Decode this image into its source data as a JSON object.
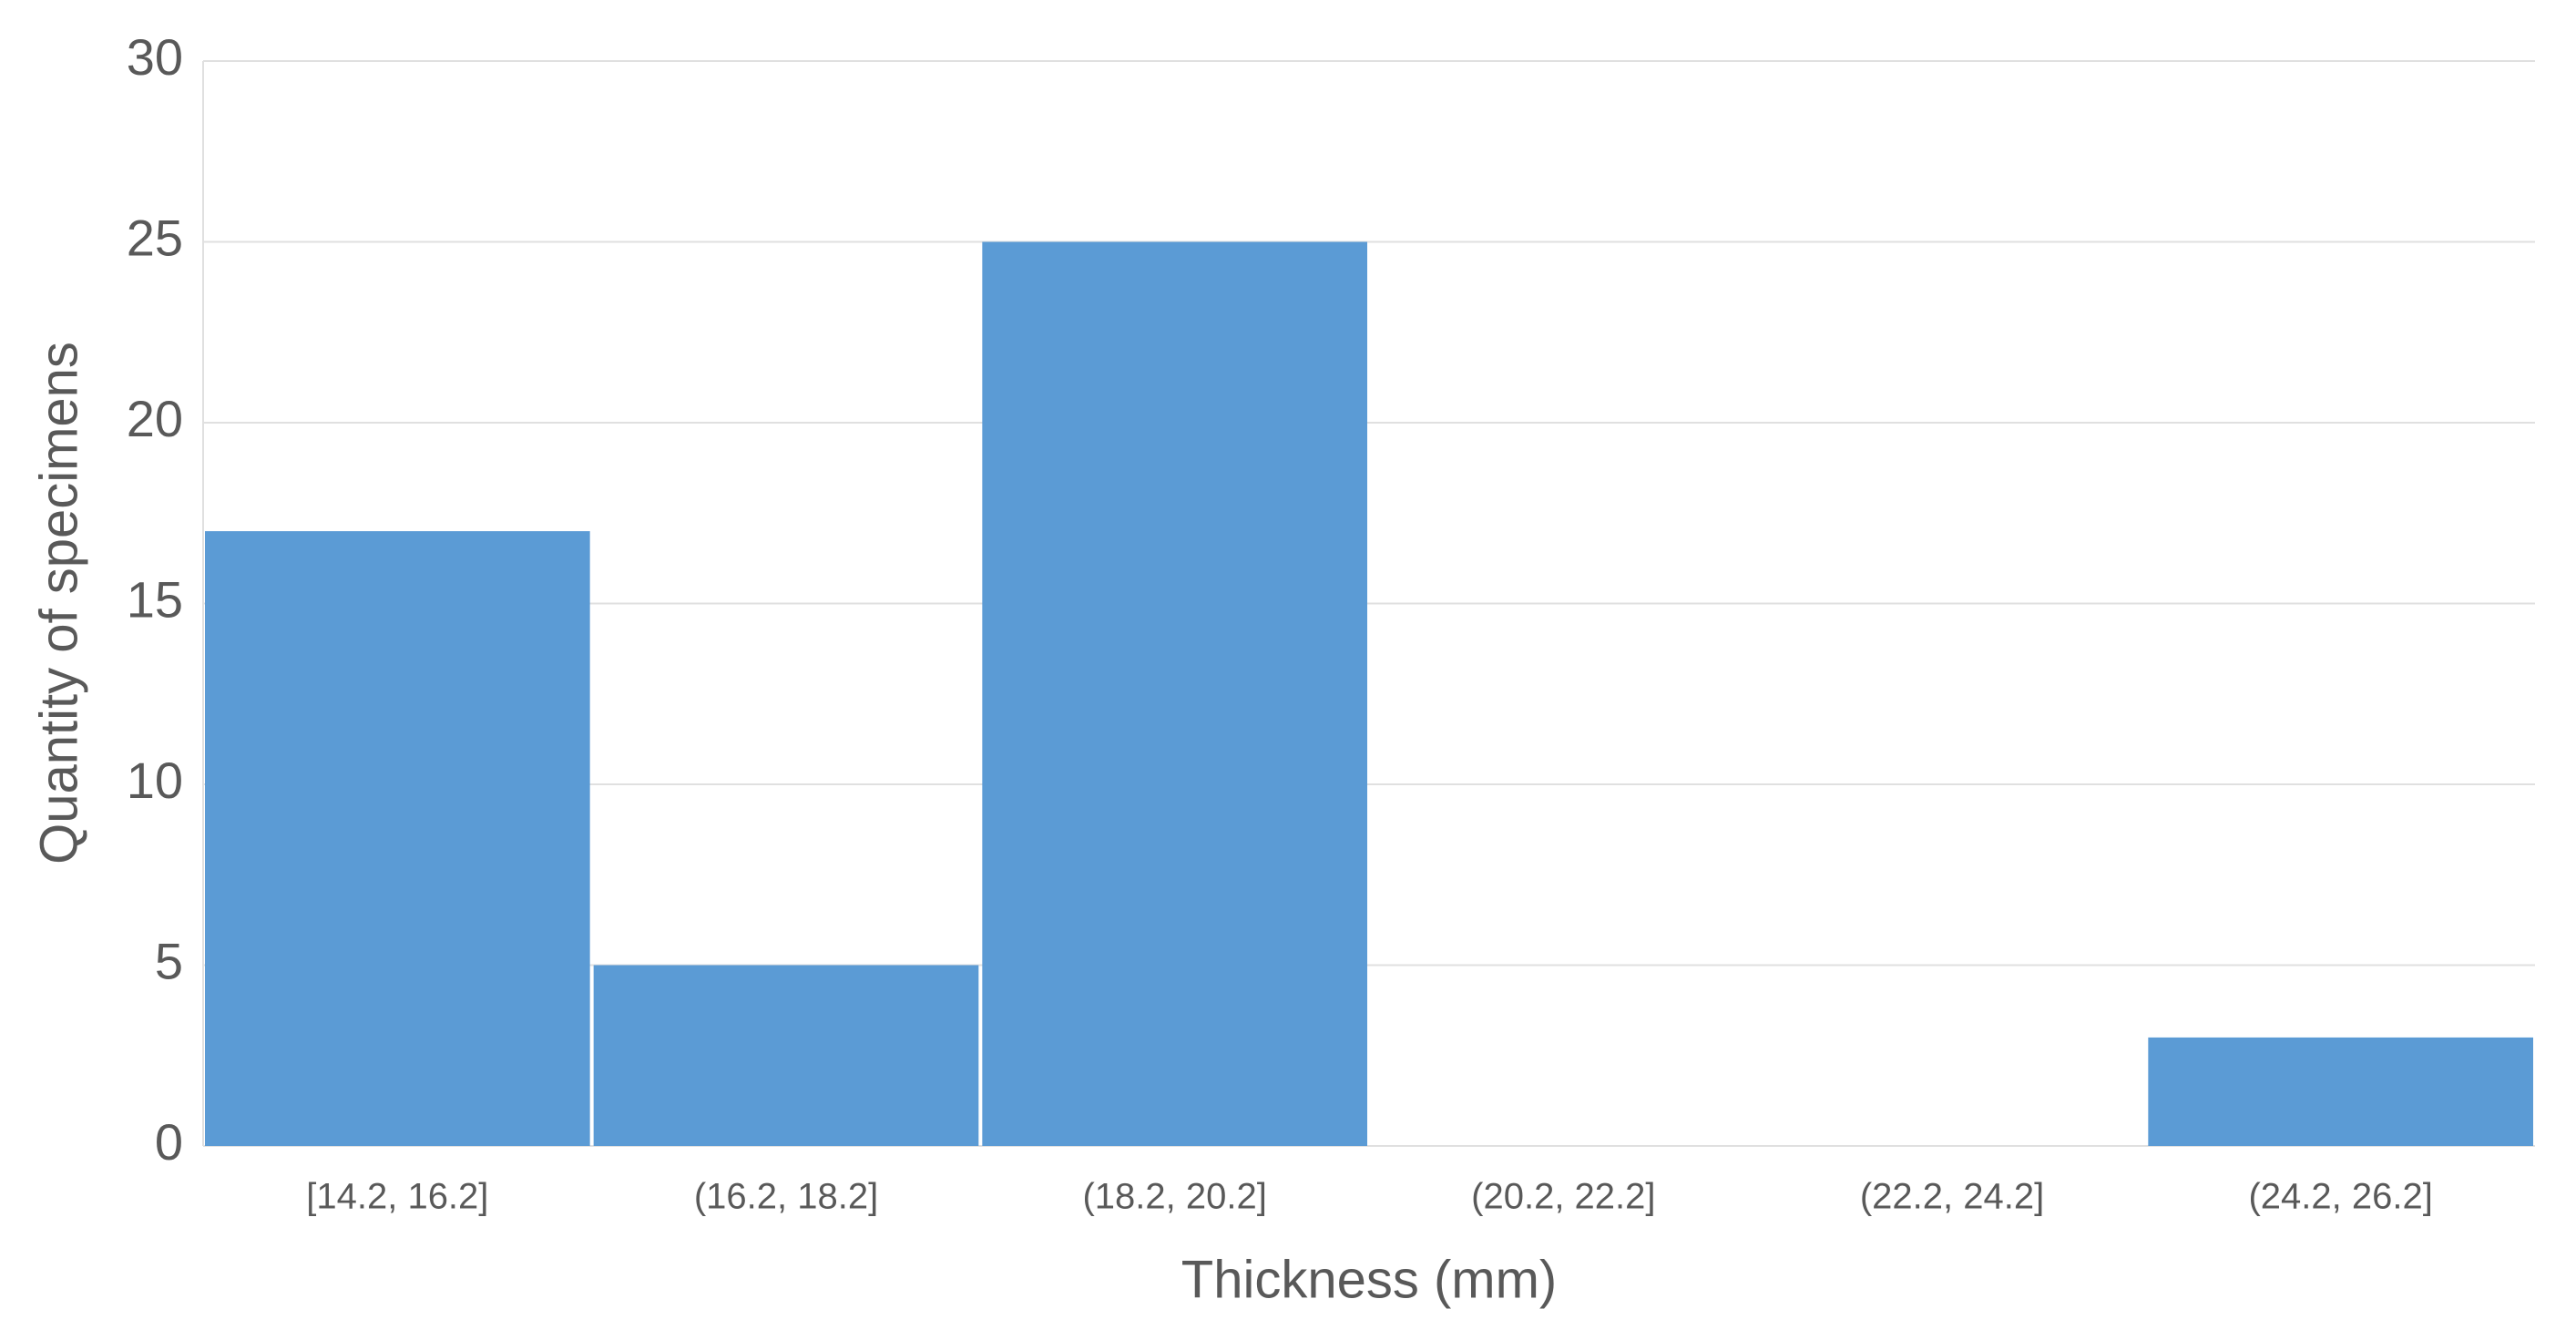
{
  "chart_data": {
    "type": "bar",
    "x_label": "Thickness (mm)",
    "y_label": "Quantity of specimens",
    "categories": [
      "[14.2, 16.2]",
      "(16.2, 18.2]",
      "(18.2, 20.2]",
      "(20.2, 22.2]",
      "(22.2, 24.2]",
      "(24.2, 26.2]"
    ],
    "values": [
      17,
      5,
      25,
      0,
      0,
      3
    ],
    "color": "#5b9bd5",
    "ylim": [
      0,
      30
    ],
    "yticks": [
      0,
      5,
      10,
      15,
      20,
      25,
      30
    ],
    "grid": true
  }
}
